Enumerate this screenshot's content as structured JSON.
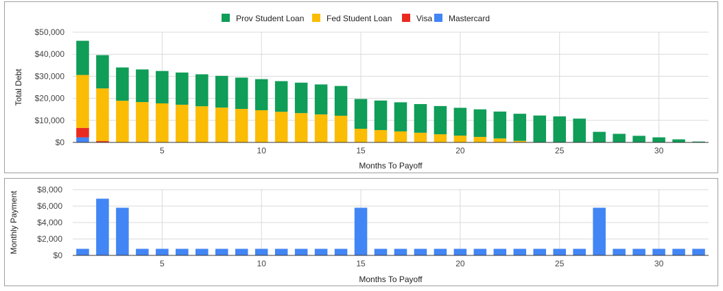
{
  "chart_data": [
    {
      "type": "bar",
      "stacked": true,
      "xlabel": "Months To Payoff",
      "ylabel": "Total Debt",
      "ylim": [
        0,
        50000
      ],
      "yticks": [
        0,
        10000,
        20000,
        30000,
        40000,
        50000
      ],
      "ytick_labels": [
        "$0",
        "$10,000",
        "$20,000",
        "$30,000",
        "$40,000",
        "$50,000"
      ],
      "xticks": [
        5,
        10,
        15,
        20,
        25,
        30
      ],
      "xtick_labels": [
        "5",
        "10",
        "15",
        "20",
        "25",
        "30"
      ],
      "x": [
        1,
        2,
        3,
        4,
        5,
        6,
        7,
        8,
        9,
        10,
        11,
        12,
        13,
        14,
        15,
        16,
        17,
        18,
        19,
        20,
        21,
        22,
        23,
        24,
        25,
        26,
        27,
        28,
        29,
        30,
        31,
        32
      ],
      "grid": true,
      "legend_position": "top",
      "series": [
        {
          "name": "Mastercard",
          "color": "#4285F4",
          "values": [
            2300,
            0,
            0,
            0,
            0,
            0,
            0,
            0,
            0,
            0,
            0,
            0,
            0,
            0,
            0,
            0,
            0,
            0,
            0,
            0,
            0,
            0,
            0,
            0,
            0,
            0,
            0,
            0,
            0,
            0,
            0,
            0
          ]
        },
        {
          "name": "Visa",
          "color": "#EA2A1F",
          "values": [
            4300,
            600,
            0,
            0,
            0,
            0,
            0,
            0,
            0,
            0,
            0,
            0,
            0,
            0,
            0,
            0,
            0,
            0,
            0,
            0,
            0,
            0,
            0,
            0,
            0,
            0,
            0,
            0,
            0,
            0,
            0,
            0
          ]
        },
        {
          "name": "Fed Student Loan",
          "color": "#FBBC04",
          "values": [
            24000,
            23900,
            18900,
            18300,
            17700,
            17100,
            16400,
            15800,
            15200,
            14600,
            13900,
            13300,
            12700,
            12100,
            6200,
            5600,
            5000,
            4400,
            3700,
            3100,
            2500,
            1800,
            700,
            0,
            0,
            0,
            0,
            0,
            0,
            0,
            0,
            0
          ]
        },
        {
          "name": "Prov Student Loan",
          "color": "#0F9D58",
          "values": [
            15500,
            15100,
            15100,
            14800,
            14700,
            14600,
            14500,
            14400,
            14200,
            14100,
            13900,
            13800,
            13600,
            13500,
            13500,
            13400,
            13200,
            13000,
            12800,
            12600,
            12500,
            12200,
            12300,
            12200,
            11800,
            10800,
            4800,
            3900,
            3000,
            2300,
            1400,
            400
          ]
        }
      ]
    },
    {
      "type": "bar",
      "xlabel": "Months To Payoff",
      "ylabel": "Monthly Payment",
      "ylim": [
        0,
        8000
      ],
      "yticks": [
        0,
        2000,
        4000,
        6000,
        8000
      ],
      "ytick_labels": [
        "$0",
        "$2,000",
        "$4,000",
        "$6,000",
        "$8,000"
      ],
      "xticks": [
        5,
        10,
        15,
        20,
        25,
        30
      ],
      "xtick_labels": [
        "5",
        "10",
        "15",
        "20",
        "25",
        "30"
      ],
      "x": [
        1,
        2,
        3,
        4,
        5,
        6,
        7,
        8,
        9,
        10,
        11,
        12,
        13,
        14,
        15,
        16,
        17,
        18,
        19,
        20,
        21,
        22,
        23,
        24,
        25,
        26,
        27,
        28,
        29,
        30,
        31,
        32
      ],
      "grid": true,
      "color": "#4285F4",
      "values": [
        800,
        6900,
        5800,
        800,
        800,
        800,
        800,
        800,
        800,
        800,
        800,
        800,
        800,
        800,
        5800,
        800,
        800,
        800,
        800,
        800,
        800,
        800,
        800,
        800,
        800,
        800,
        5800,
        800,
        800,
        800,
        800,
        800
      ]
    }
  ]
}
